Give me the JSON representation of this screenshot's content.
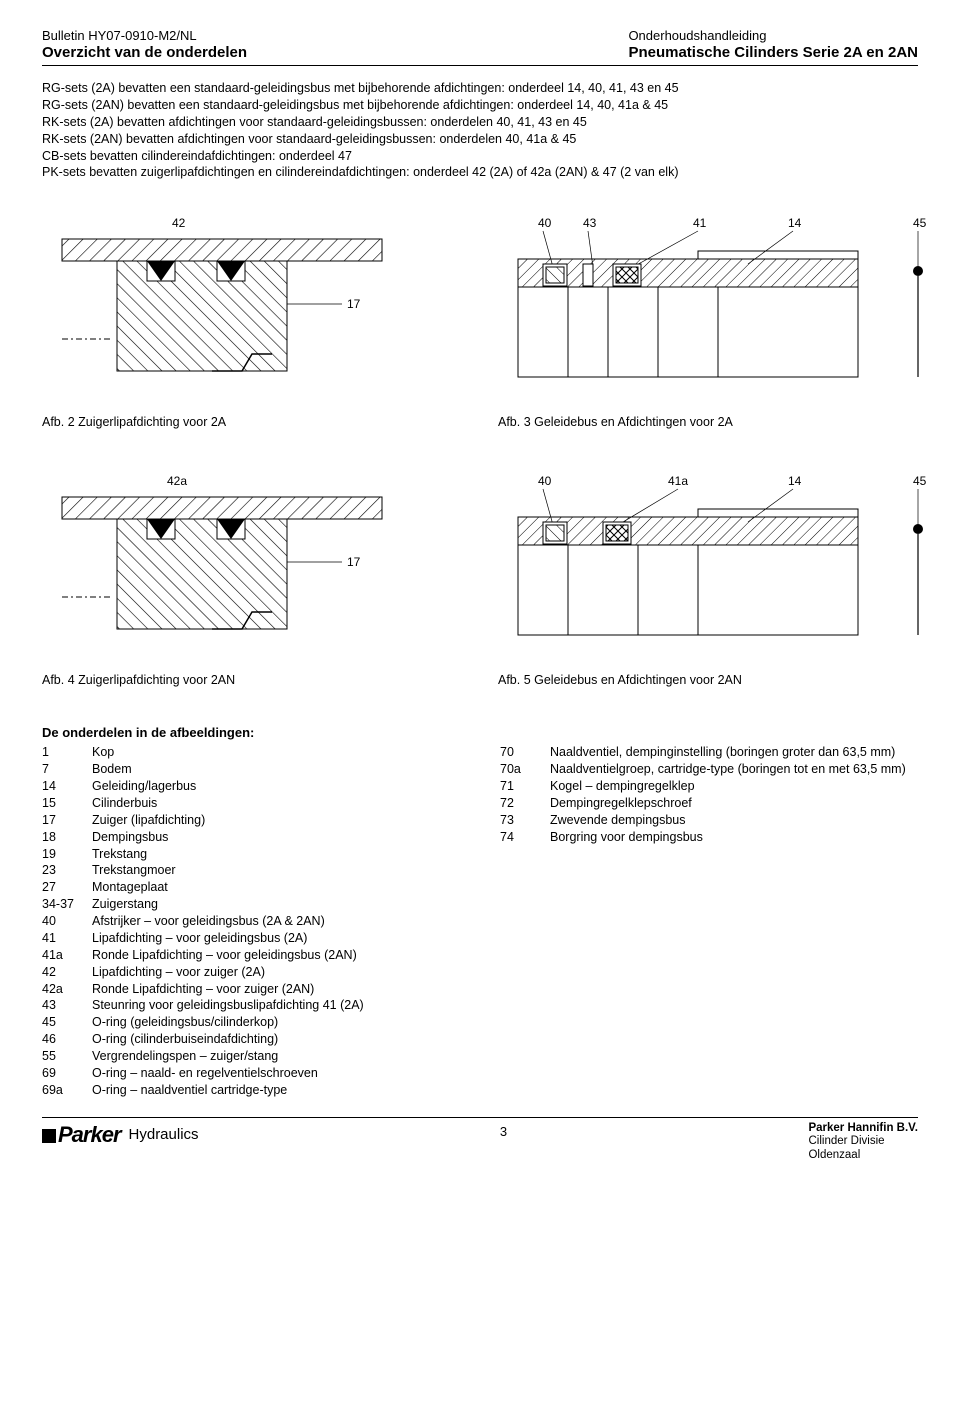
{
  "header": {
    "left_line1": "Bulletin HY07-0910-M2/NL",
    "left_line2": "Overzicht van de onderdelen",
    "right_line1": "Onderhoudshandleiding",
    "right_line2": "Pneumatische Cilinders Serie 2A en 2AN"
  },
  "intro_lines": [
    "RG-sets (2A) bevatten een standaard-geleidingsbus met bijbehorende afdichtingen: onderdeel 14, 40, 41, 43 en 45",
    "RG-sets (2AN) bevatten een standaard-geleidingsbus met bijbehorende afdichtingen: onderdeel 14, 40, 41a & 45",
    "RK-sets (2A) bevatten afdichtingen voor standaard-geleidingsbussen: onderdelen 40, 41, 43 en 45",
    "RK-sets (2AN) bevatten afdichtingen voor standaard-geleidingsbussen: onderdelen 40, 41a & 45",
    "CB-sets bevatten cilindereindafdichtingen: onderdeel 47",
    "PK-sets bevatten zuigerlipafdichtingen en cilindereindafdichtingen: onderdeel 42 (2A) of 42a (2AN) & 47 (2 van elk)"
  ],
  "fig2": {
    "caption": "Afb. 2 Zuigerlipafdichting voor 2A",
    "labels": {
      "a": "42",
      "b": "17"
    },
    "stroke": "#000000",
    "hatch": "#000000",
    "bg": "#ffffff"
  },
  "fig3": {
    "caption": "Afb. 3 Geleidebus en Afdichtingen voor 2A",
    "labels": [
      "40",
      "43",
      "41",
      "14",
      "45"
    ],
    "stroke": "#000000",
    "bg": "#ffffff"
  },
  "fig4": {
    "caption": "Afb. 4 Zuigerlipafdichting voor 2AN",
    "labels": {
      "a": "42a",
      "b": "17"
    },
    "stroke": "#000000",
    "bg": "#ffffff"
  },
  "fig5": {
    "caption": "Afb. 5 Geleidebus en Afdichtingen voor 2AN",
    "labels": [
      "40",
      "41a",
      "14",
      "45"
    ],
    "stroke": "#000000",
    "bg": "#ffffff"
  },
  "parts": {
    "heading": "De onderdelen in de afbeeldingen:",
    "left": [
      {
        "n": "1",
        "d": "Kop"
      },
      {
        "n": "7",
        "d": "Bodem"
      },
      {
        "n": "14",
        "d": "Geleiding/lagerbus"
      },
      {
        "n": "15",
        "d": "Cilinderbuis"
      },
      {
        "n": "17",
        "d": "Zuiger (lipafdichting)"
      },
      {
        "n": "18",
        "d": "Dempingsbus"
      },
      {
        "n": "19",
        "d": "Trekstang"
      },
      {
        "n": "23",
        "d": "Trekstangmoer"
      },
      {
        "n": "27",
        "d": "Montageplaat"
      },
      {
        "n": "34-37",
        "d": "Zuigerstang"
      },
      {
        "n": "40",
        "d": "Afstrijker – voor geleidingsbus (2A & 2AN)"
      },
      {
        "n": "41",
        "d": "Lipafdichting – voor geleidingsbus (2A)"
      },
      {
        "n": "41a",
        "d": "Ronde Lipafdichting – voor geleidingsbus (2AN)"
      },
      {
        "n": "42",
        "d": "Lipafdichting – voor zuiger (2A)"
      },
      {
        "n": "42a",
        "d": "Ronde Lipafdichting – voor zuiger (2AN)"
      },
      {
        "n": "43",
        "d": "Steunring voor geleidingsbuslipafdichting 41 (2A)"
      },
      {
        "n": "45",
        "d": "O-ring (geleidingsbus/cilinderkop)"
      },
      {
        "n": "46",
        "d": "O-ring (cilinderbuiseindafdichting)"
      },
      {
        "n": "55",
        "d": "Vergrendelingspen – zuiger/stang"
      },
      {
        "n": "69",
        "d": "O-ring – naald- en regelventielschroeven"
      },
      {
        "n": "69a",
        "d": "O-ring – naaldventiel cartridge-type"
      }
    ],
    "right": [
      {
        "n": "70",
        "d": "Naaldventiel, dempinginstelling (boringen groter dan 63,5 mm)"
      },
      {
        "n": "70a",
        "d": "Naaldventielgroep, cartridge-type (boringen tot en met 63,5 mm)"
      },
      {
        "n": "71",
        "d": "Kogel – dempingregelklep"
      },
      {
        "n": "72",
        "d": "Dempingregelklepschroef"
      },
      {
        "n": "73",
        "d": "Zwevende dempingsbus"
      },
      {
        "n": "74",
        "d": "Borgring voor dempingsbus"
      }
    ]
  },
  "footer": {
    "brand": "Parker",
    "sub": "Hydraulics",
    "page": "3",
    "right1": "Parker Hannifin B.V.",
    "right2": "Cilinder Divisie",
    "right3": "Oldenzaal"
  }
}
